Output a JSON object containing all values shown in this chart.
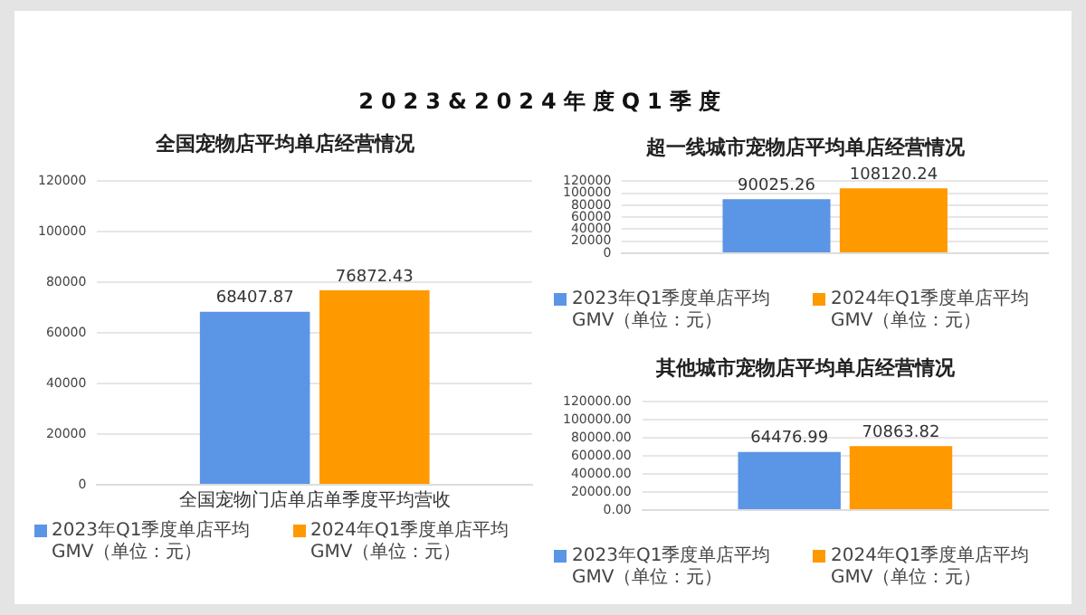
{
  "chart_data": [
    {
      "type": "bar",
      "title": "全国宠物店平均单店经营情况",
      "annotations": [
        "2023&2024年度Q1季度"
      ],
      "categories": [
        "全国宠物门店单店单季度平均营收"
      ],
      "series": [
        {
          "name": "2023年Q1季度单店平均GMV（单位：元）",
          "color": "#5b95e5",
          "values": [
            68407.87
          ]
        },
        {
          "name": "2024年Q1季度单店平均GMV（单位：元）",
          "color": "#ff9900",
          "values": [
            76872.43
          ]
        }
      ],
      "ylim": [
        0,
        120000
      ],
      "yticks": [
        0,
        20000,
        40000,
        60000,
        80000,
        100000,
        120000
      ],
      "grid": "y",
      "legend": "bottom",
      "data_labels": true
    },
    {
      "type": "bar",
      "title": "超一线城市宠物店平均单店经营情况",
      "categories": [
        null
      ],
      "series": [
        {
          "name": "2023年Q1季度单店平均GMV（单位：元）",
          "color": "#5b95e5",
          "values": [
            90025.26
          ]
        },
        {
          "name": "2024年Q1季度单店平均GMV（单位：元）",
          "color": "#ff9900",
          "values": [
            108120.24
          ]
        }
      ],
      "ylim": [
        0,
        120000
      ],
      "yticks": [
        0,
        20000,
        40000,
        60000,
        80000,
        100000,
        120000
      ],
      "grid": "y",
      "legend": "bottom",
      "data_labels": true
    },
    {
      "type": "bar",
      "title": "其他城市宠物店平均单店经营情况",
      "categories": [
        null
      ],
      "series": [
        {
          "name": "2023年Q1季度单店平均GMV（单位：元）",
          "color": "#5b95e5",
          "values": [
            64476.99
          ]
        },
        {
          "name": "2024年Q1季度单店平均GMV（单位：元）",
          "color": "#ff9900",
          "values": [
            70863.82
          ]
        }
      ],
      "ylim": [
        0,
        120000
      ],
      "yticks": [
        {
          "value": 0,
          "label": "0.00"
        },
        {
          "value": 20000,
          "label": "20000.00"
        },
        {
          "value": 40000,
          "label": "40000.00"
        },
        {
          "value": 60000,
          "label": "60000.00"
        },
        {
          "value": 80000,
          "label": "80000.00"
        },
        {
          "value": 100000,
          "label": "100000.00"
        },
        {
          "value": 120000,
          "label": "120000.00"
        }
      ],
      "grid": "y",
      "legend": "bottom",
      "data_labels": true
    }
  ]
}
